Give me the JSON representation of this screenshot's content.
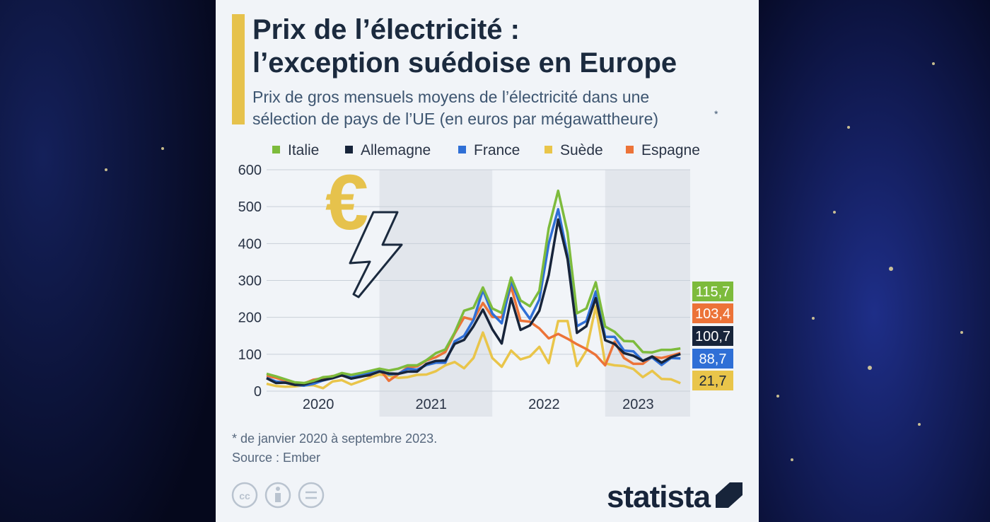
{
  "title": [
    "Prix de l’électricité :",
    "l’exception suédoise en Europe"
  ],
  "subtitle": [
    "Prix de gros mensuels moyens de l’électricité dans une",
    "sélection de pays de l’UE (en euros par mégawattheure)"
  ],
  "subtitle_marker": "*",
  "footnote": "* de janvier 2020 à septembre 2023.",
  "source": "Source : Ember",
  "brand": "statista",
  "chart_data": {
    "type": "line",
    "categories": [
      null,
      null,
      null,
      null,
      null,
      null,
      "2020",
      null,
      null,
      null,
      null,
      null,
      null,
      null,
      null,
      null,
      null,
      null,
      "2021",
      null,
      null,
      null,
      null,
      null,
      null,
      null,
      null,
      null,
      null,
      null,
      "2022",
      null,
      null,
      null,
      null,
      null,
      null,
      null,
      null,
      null,
      "2023",
      null,
      null,
      null,
      null
    ],
    "ylim": [
      0,
      600
    ],
    "yticks": [
      0,
      100,
      200,
      300,
      400,
      500,
      600
    ],
    "grid": true,
    "series": [
      {
        "name": "Italie",
        "color": "#7dbb3c",
        "values": [
          47,
          40,
          32,
          24,
          22,
          28,
          38,
          40,
          49,
          44,
          49,
          55,
          61,
          56,
          61,
          70,
          70,
          84,
          103,
          113,
          159,
          218,
          226,
          281,
          224,
          212,
          308,
          246,
          230,
          272,
          442,
          543,
          430,
          211,
          224,
          295,
          175,
          161,
          136,
          135,
          106,
          105,
          112,
          112,
          115.7
        ],
        "value_labels": [
          null,
          null,
          null,
          null,
          null,
          null,
          null,
          null,
          null,
          null,
          null,
          null,
          null,
          null,
          null,
          null,
          null,
          null,
          null,
          null,
          null,
          null,
          null,
          null,
          null,
          null,
          null,
          null,
          null,
          null,
          null,
          null,
          null,
          null,
          null,
          null,
          null,
          null,
          null,
          null,
          null,
          null,
          null,
          null,
          "115,7"
        ]
      },
      {
        "name": "Allemagne",
        "color": "#17243a",
        "values": [
          35,
          22,
          23,
          17,
          18,
          26,
          30,
          35,
          43,
          34,
          39,
          44,
          53,
          48,
          47,
          53,
          53,
          74,
          82,
          83,
          128,
          139,
          176,
          221,
          168,
          129,
          252,
          166,
          178,
          218,
          315,
          465,
          358,
          158,
          176,
          252,
          138,
          128,
          103,
          96,
          82,
          94,
          77,
          92,
          100.7
        ],
        "value_labels": [
          null,
          null,
          null,
          null,
          null,
          null,
          null,
          null,
          null,
          null,
          null,
          null,
          null,
          null,
          null,
          null,
          null,
          null,
          null,
          null,
          null,
          null,
          null,
          null,
          null,
          null,
          null,
          null,
          null,
          null,
          null,
          null,
          null,
          null,
          null,
          null,
          null,
          null,
          null,
          null,
          null,
          null,
          null,
          null,
          "100,7"
        ]
      },
      {
        "name": "France",
        "color": "#2f6fd6",
        "values": [
          36,
          26,
          23,
          17,
          15,
          20,
          29,
          35,
          43,
          37,
          43,
          49,
          58,
          45,
          47,
          61,
          58,
          71,
          77,
          77,
          135,
          150,
          193,
          274,
          210,
          184,
          298,
          232,
          196,
          248,
          400,
          493,
          368,
          176,
          190,
          270,
          147,
          147,
          110,
          108,
          82,
          91,
          71,
          90,
          88.7
        ],
        "value_labels": [
          null,
          null,
          null,
          null,
          null,
          null,
          null,
          null,
          null,
          null,
          null,
          null,
          null,
          null,
          null,
          null,
          null,
          null,
          null,
          null,
          null,
          null,
          null,
          null,
          null,
          null,
          null,
          null,
          null,
          null,
          null,
          null,
          null,
          null,
          null,
          null,
          null,
          null,
          null,
          null,
          null,
          null,
          null,
          null,
          "88,7"
        ]
      },
      {
        "name": "Suède",
        "color": "#e9c54a",
        "values": [
          20,
          14,
          12,
          13,
          16,
          16,
          8,
          26,
          30,
          18,
          27,
          37,
          45,
          42,
          36,
          38,
          44,
          45,
          54,
          70,
          79,
          62,
          90,
          159,
          90,
          66,
          110,
          86,
          94,
          120,
          76,
          190,
          190,
          68,
          110,
          230,
          75,
          70,
          68,
          60,
          38,
          55,
          33,
          32,
          21.7
        ],
        "value_labels": [
          null,
          null,
          null,
          null,
          null,
          null,
          null,
          null,
          null,
          null,
          null,
          null,
          null,
          null,
          null,
          null,
          null,
          null,
          null,
          null,
          null,
          null,
          null,
          null,
          null,
          null,
          null,
          null,
          null,
          null,
          null,
          null,
          null,
          null,
          null,
          null,
          null,
          null,
          null,
          null,
          null,
          null,
          null,
          null,
          "21,7"
        ]
      },
      {
        "name": "Espagne",
        "color": "#ec7338",
        "values": [
          41,
          36,
          28,
          18,
          21,
          31,
          35,
          41,
          42,
          37,
          42,
          42,
          60,
          28,
          46,
          65,
          67,
          83,
          92,
          106,
          156,
          200,
          193,
          239,
          201,
          200,
          283,
          191,
          188,
          170,
          143,
          155,
          142,
          127,
          114,
          98,
          70,
          134,
          90,
          74,
          74,
          93,
          90,
          96,
          103.4
        ],
        "value_labels": [
          null,
          null,
          null,
          null,
          null,
          null,
          null,
          null,
          null,
          null,
          null,
          null,
          null,
          null,
          null,
          null,
          null,
          null,
          null,
          null,
          null,
          null,
          null,
          null,
          null,
          null,
          null,
          null,
          null,
          null,
          null,
          null,
          null,
          null,
          null,
          null,
          null,
          null,
          null,
          null,
          null,
          null,
          null,
          null,
          "103,4"
        ]
      }
    ]
  }
}
